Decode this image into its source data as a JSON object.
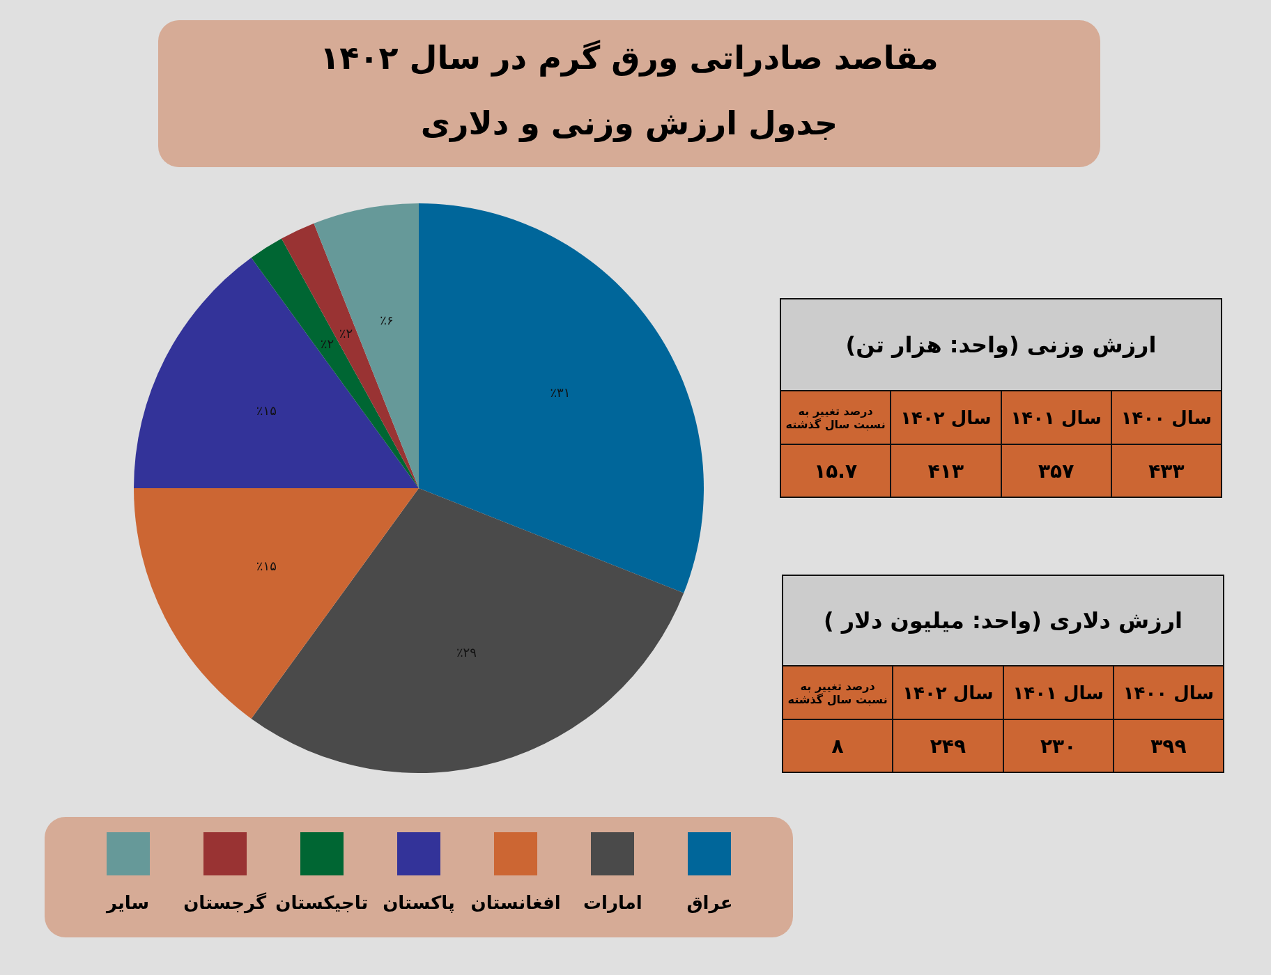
{
  "chart_data": [
    {
      "type": "pie",
      "title": "مقاصد صادراتی ورق گرم در سال ۱۴۰۲",
      "subtitle": "جدول ارزش وزنی و دلاری",
      "categories": [
        "عراق",
        "امارات",
        "افغانستان",
        "پاکستان",
        "تاجیکستان",
        "گرجستان",
        "سایر"
      ],
      "values": [
        31,
        29,
        15,
        15,
        2,
        2,
        6
      ],
      "value_labels": [
        "٪۳۱",
        "٪۲۹",
        "٪۱۵",
        "٪۱۵",
        "٪۲",
        "٪۲",
        "٪۶"
      ],
      "colors": [
        "#00669a",
        "#4a4a4a",
        "#cc6633",
        "#333399",
        "#006633",
        "#993333",
        "#669999"
      ],
      "legend": "bottom"
    },
    {
      "type": "other",
      "title": "ارزش وزنی (واحد: هزار تن)",
      "categories": [
        "سال ۱۴۰۰",
        "سال ۱۴۰۱",
        "سال ۱۴۰۲",
        "درصد تغییر به نسبت سال گذشته"
      ],
      "values": [
        433,
        357,
        413,
        15.7
      ],
      "value_labels": [
        "۴۳۳",
        "۳۵۷",
        "۴۱۳",
        "۱۵.۷"
      ]
    },
    {
      "type": "other",
      "title": "ارزش دلاری (واحد: میلیون دلار )",
      "categories": [
        "سال ۱۴۰۰",
        "سال ۱۴۰۱",
        "سال ۱۴۰۲",
        "درصد تغییر به نسبت سال گذشته"
      ],
      "values": [
        399,
        230,
        249,
        8
      ],
      "value_labels": [
        "۳۹۹",
        "۲۳۰",
        "۲۴۹",
        "۸"
      ]
    }
  ]
}
